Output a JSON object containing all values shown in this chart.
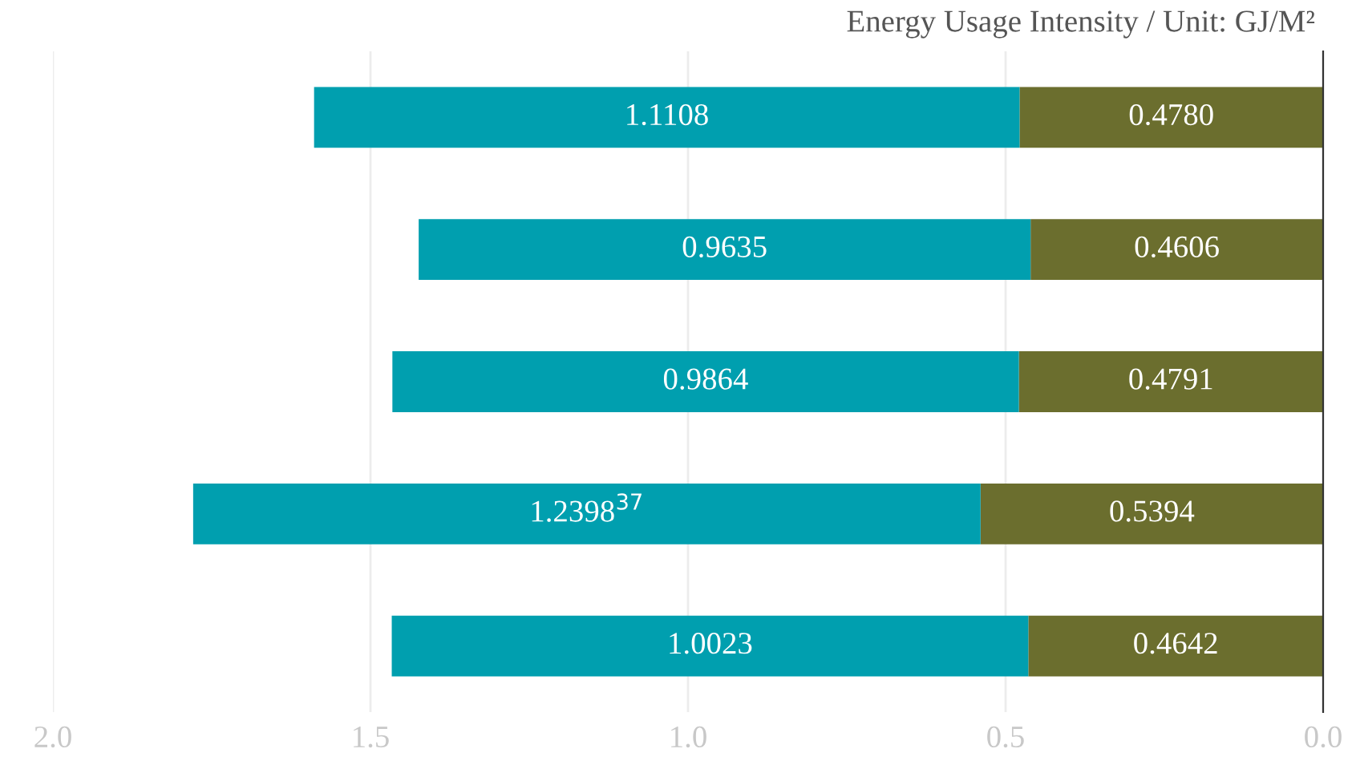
{
  "chart_data": {
    "type": "bar",
    "orientation": "horizontal",
    "stacked": true,
    "title": "Energy Usage Intensity / Unit: GJ/M²",
    "categories": [
      null,
      null,
      null,
      null,
      null
    ],
    "series": [
      {
        "color": "#6b6e2e",
        "values": [
          0.478,
          0.4606,
          0.4791,
          0.5394,
          0.4642
        ],
        "value_labels": [
          "0.4780",
          "0.4606",
          "0.4791",
          "0.5394",
          "0.4642"
        ]
      },
      {
        "color": "#009faf",
        "values": [
          1.1108,
          0.9635,
          0.9864,
          1.2398,
          1.0023
        ],
        "value_labels": [
          "1.1108",
          "0.9635",
          "0.9864",
          "1.2398$^{37}$",
          "1.0023"
        ]
      }
    ],
    "xlim": [
      2.0,
      0.0
    ],
    "xticks": [
      {
        "value": 2.0,
        "label": "2.0"
      },
      {
        "value": 1.5,
        "label": "1.5"
      },
      {
        "value": 1.0,
        "label": "1.0"
      },
      {
        "value": 0.5,
        "label": "0.5"
      },
      {
        "value": 0.0,
        "label": "0.0"
      }
    ],
    "grid": "x",
    "tick_labels": "x",
    "legend": false
  }
}
